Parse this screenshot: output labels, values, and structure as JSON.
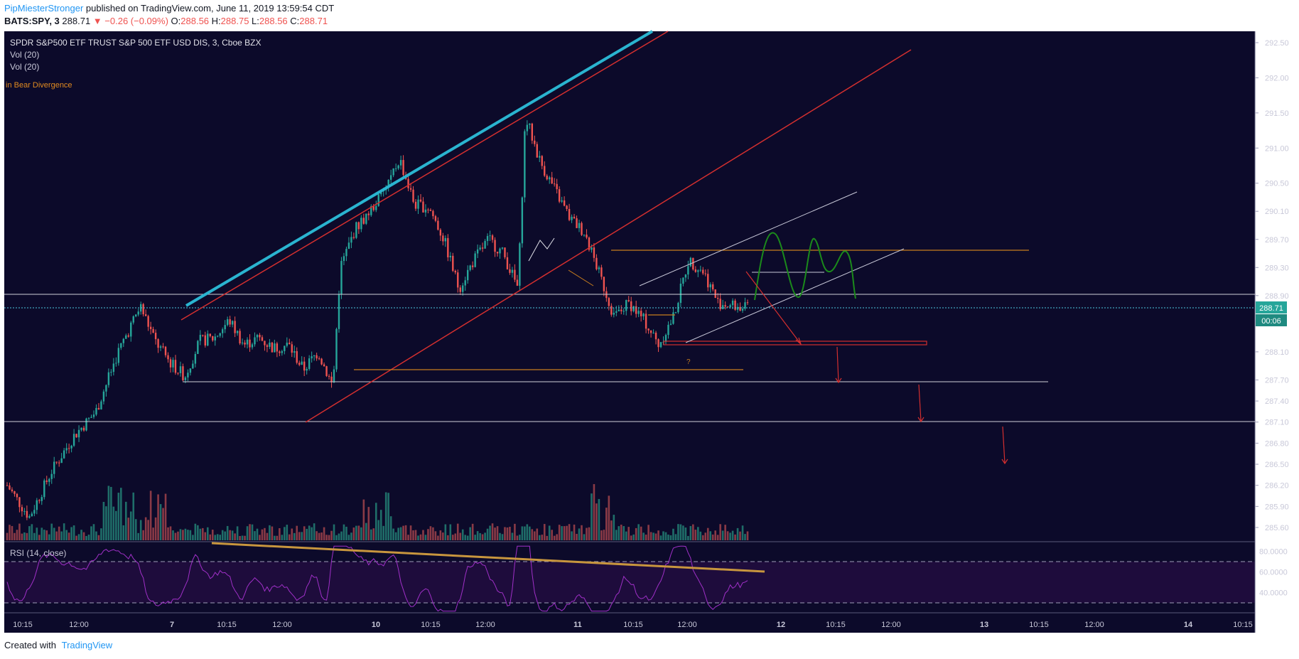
{
  "header": {
    "author": "PipMiesterStronger",
    "published": "published on TradingView.com, June 11, 2019 13:59:54 CDT",
    "symbol": "BATS:SPY, 3",
    "last": "288.71",
    "change": "▼ −0.26 (−0.09%)",
    "o_label": "O:",
    "o": "288.56",
    "h_label": "H:",
    "h": "288.75",
    "l_label": "L:",
    "l": "288.56",
    "c_label": "C:",
    "c": "288.71"
  },
  "legend": {
    "title": "SPDR S&P500 ETF TRUST S&P 500 ETF USD DIS, 3, Cboe BZX",
    "vol1": "Vol (20)",
    "vol2": "Vol (20)",
    "divergence": "in Bear Divergence"
  },
  "annotation_question": "?",
  "rsi_label": "RSI (14, close)",
  "last_price_badge": "288.71",
  "countdown_badge": "00:06",
  "footer": {
    "created": "Created with",
    "brand": "TradingView"
  },
  "colors": {
    "background": "#0c0a2a",
    "up": "#26a69a",
    "down": "#ef5350",
    "trend_cyan": "#2ab4d0",
    "trend_red": "#d32f2f",
    "orange": "#c77d1e",
    "green_projection": "#1b8a1b",
    "rsi": "#a030c8",
    "rsi_band": "#2a0f4a",
    "rsi_trend": "#c8963e"
  },
  "chart_data": {
    "type": "candlestick",
    "symbol": "BATS:SPY",
    "interval": "3",
    "price_axis": {
      "ticks": [
        292.5,
        292.0,
        291.5,
        291.0,
        290.5,
        290.1,
        289.7,
        289.3,
        288.9,
        288.1,
        287.7,
        287.4,
        287.1,
        286.8,
        286.5,
        286.2,
        285.9,
        285.6
      ],
      "labels": [
        "292.50",
        "292.00",
        "291.50",
        "291.00",
        "290.50",
        "290.10",
        "289.70",
        "289.30",
        "288.90",
        "288.10",
        "287.70",
        "287.40",
        "287.10",
        "286.80",
        "286.50",
        "286.20",
        "285.90",
        "285.60"
      ],
      "range": [
        285.35,
        292.65
      ]
    },
    "time_axis": {
      "labels": [
        "10:15",
        "12:00",
        "7",
        "10:15",
        "12:00",
        "10",
        "10:15",
        "12:00",
        "11",
        "10:15",
        "12:00",
        "12",
        "10:15",
        "12:00",
        "13",
        "10:15",
        "12:00",
        "14",
        "10:15"
      ],
      "bold": [
        false,
        false,
        true,
        false,
        false,
        true,
        false,
        false,
        true,
        false,
        false,
        true,
        false,
        false,
        true,
        false,
        false,
        true,
        false
      ]
    },
    "price_path": [
      [
        0.0,
        286.2
      ],
      [
        0.03,
        285.75
      ],
      [
        0.06,
        286.4
      ],
      [
        0.09,
        286.9
      ],
      [
        0.12,
        287.25
      ],
      [
        0.15,
        288.1
      ],
      [
        0.18,
        288.75
      ],
      [
        0.2,
        288.25
      ],
      [
        0.22,
        287.95
      ],
      [
        0.24,
        287.75
      ],
      [
        0.26,
        288.25
      ],
      [
        0.28,
        288.3
      ],
      [
        0.3,
        288.55
      ],
      [
        0.32,
        288.2
      ],
      [
        0.34,
        288.3
      ],
      [
        0.36,
        288.15
      ],
      [
        0.38,
        288.2
      ],
      [
        0.4,
        287.85
      ],
      [
        0.42,
        288.1
      ],
      [
        0.44,
        287.6
      ],
      [
        0.45,
        289.3
      ],
      [
        0.47,
        289.85
      ],
      [
        0.49,
        290.1
      ],
      [
        0.51,
        290.4
      ],
      [
        0.53,
        290.85
      ],
      [
        0.55,
        290.2
      ],
      [
        0.57,
        290.15
      ],
      [
        0.59,
        289.7
      ],
      [
        0.61,
        289.0
      ],
      [
        0.63,
        289.4
      ],
      [
        0.65,
        289.7
      ],
      [
        0.67,
        289.5
      ],
      [
        0.69,
        289.0
      ],
      [
        0.7,
        291.45
      ],
      [
        0.72,
        290.8
      ],
      [
        0.74,
        290.4
      ],
      [
        0.76,
        290.0
      ],
      [
        0.78,
        289.8
      ],
      [
        0.8,
        289.2
      ],
      [
        0.82,
        288.6
      ],
      [
        0.84,
        288.8
      ],
      [
        0.86,
        288.55
      ],
      [
        0.88,
        288.2
      ],
      [
        0.9,
        288.6
      ],
      [
        0.92,
        289.4
      ],
      [
        0.94,
        289.25
      ],
      [
        0.96,
        288.8
      ],
      [
        1.0,
        288.71
      ]
    ],
    "horizontal_levels": [
      288.9,
      287.7,
      287.1,
      289.5,
      288.2,
      287.85
    ],
    "rsi": {
      "label": "RSI (14, close)",
      "ticks": [
        80,
        60,
        40
      ],
      "labels": [
        "80.0000",
        "60.0000",
        "40.0000"
      ],
      "upper_band": 70,
      "lower_band": 30,
      "trend_from": 81,
      "trend_to": 60
    }
  }
}
